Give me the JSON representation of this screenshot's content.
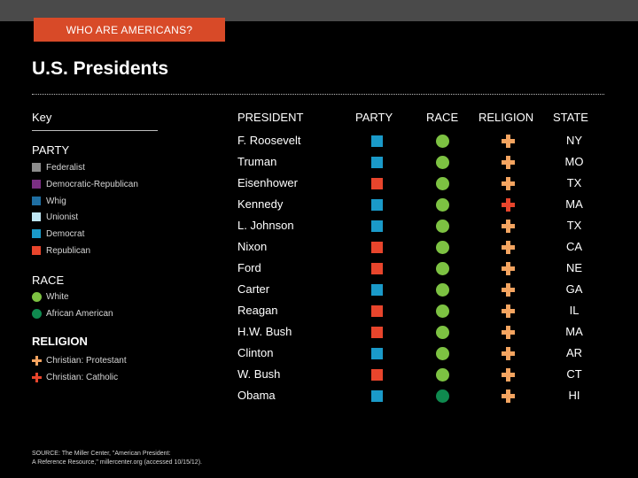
{
  "header": {
    "section_label": "WHO ARE AMERICANS?",
    "title": "U.S. Presidents"
  },
  "colors": {
    "Federalist": "#8c8c8c",
    "Democratic-Republican": "#7b2f83",
    "Whig": "#1f6fa3",
    "Unionist": "#bfe6f4",
    "Democrat": "#1a9ac9",
    "Republican": "#e8452c",
    "White": "#7dc242",
    "African American": "#0f8a4f",
    "Christian: Protestant": "#f4a460",
    "Christian: Catholic": "#e8452c"
  },
  "key": {
    "title": "Key",
    "party": {
      "heading": "PARTY",
      "items": [
        "Federalist",
        "Democratic-Republican",
        "Whig",
        "Unionist",
        "Democrat",
        "Republican"
      ]
    },
    "race": {
      "heading": "RACE",
      "items": [
        "White",
        "African American"
      ]
    },
    "religion": {
      "heading": "RELIGION",
      "items": [
        "Christian: Protestant",
        "Christian: Catholic"
      ]
    }
  },
  "table": {
    "headers": {
      "president": "PRESIDENT",
      "party": "PARTY",
      "race": "RACE",
      "religion": "RELIGION",
      "state": "STATE"
    },
    "rows": [
      {
        "president": "F. Roosevelt",
        "party": "Democrat",
        "race": "White",
        "religion": "Christian: Protestant",
        "state": "NY"
      },
      {
        "president": "Truman",
        "party": "Democrat",
        "race": "White",
        "religion": "Christian: Protestant",
        "state": "MO"
      },
      {
        "president": "Eisenhower",
        "party": "Republican",
        "race": "White",
        "religion": "Christian: Protestant",
        "state": "TX"
      },
      {
        "president": "Kennedy",
        "party": "Democrat",
        "race": "White",
        "religion": "Christian: Catholic",
        "state": "MA"
      },
      {
        "president": "L. Johnson",
        "party": "Democrat",
        "race": "White",
        "religion": "Christian: Protestant",
        "state": "TX"
      },
      {
        "president": "Nixon",
        "party": "Republican",
        "race": "White",
        "religion": "Christian: Protestant",
        "state": "CA"
      },
      {
        "president": "Ford",
        "party": "Republican",
        "race": "White",
        "religion": "Christian: Protestant",
        "state": "NE"
      },
      {
        "president": "Carter",
        "party": "Democrat",
        "race": "White",
        "religion": "Christian: Protestant",
        "state": "GA"
      },
      {
        "president": "Reagan",
        "party": "Republican",
        "race": "White",
        "religion": "Christian: Protestant",
        "state": "IL"
      },
      {
        "president": "H.W. Bush",
        "party": "Republican",
        "race": "White",
        "religion": "Christian: Protestant",
        "state": "MA"
      },
      {
        "president": "Clinton",
        "party": "Democrat",
        "race": "White",
        "religion": "Christian: Protestant",
        "state": "AR"
      },
      {
        "president": "W. Bush",
        "party": "Republican",
        "race": "White",
        "religion": "Christian: Protestant",
        "state": "CT"
      },
      {
        "president": "Obama",
        "party": "Democrat",
        "race": "African American",
        "religion": "Christian: Protestant",
        "state": "HI"
      }
    ]
  },
  "source": {
    "line1": "SOURCE: The Miller Center, \"American President:",
    "line2": "A Reference Resource,\" millercenter.org (accessed 10/15/12)."
  }
}
